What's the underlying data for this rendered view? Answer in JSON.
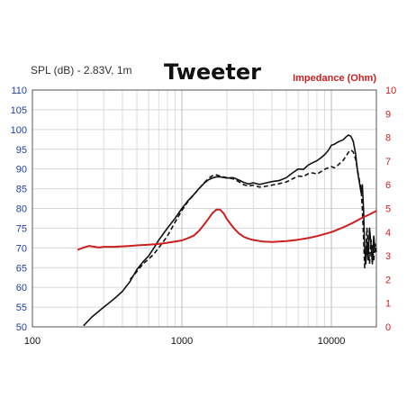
{
  "chart_data": {
    "type": "line",
    "title": "Tweeter",
    "left_axis": {
      "label": "SPL (dB) - 2.83V, 1m",
      "range": [
        50,
        110
      ],
      "ticks": [
        {
          "value": 110,
          "label": "110"
        },
        {
          "value": 105,
          "label": "105"
        },
        {
          "value": 100,
          "label": "100"
        },
        {
          "value": 95,
          "label": "95"
        },
        {
          "value": 90,
          "label": "90"
        },
        {
          "value": 85,
          "label": "85"
        },
        {
          "value": 80,
          "label": "80"
        },
        {
          "value": 75,
          "label": "75"
        },
        {
          "value": 70,
          "label": "70"
        },
        {
          "value": 65,
          "label": "65"
        },
        {
          "value": 60,
          "label": "60"
        },
        {
          "value": 55,
          "label": "55"
        },
        {
          "value": 50,
          "label": "50"
        }
      ],
      "color": "#1f3f9f"
    },
    "right_axis": {
      "label": "Impedance (Ohm)",
      "range": [
        0,
        10
      ],
      "ticks": [
        {
          "value": 10,
          "label": "10"
        },
        {
          "value": 9,
          "label": "9"
        },
        {
          "value": 8,
          "label": "8"
        },
        {
          "value": 7,
          "label": "7"
        },
        {
          "value": 6,
          "label": "6"
        },
        {
          "value": 5,
          "label": "5"
        },
        {
          "value": 4,
          "label": "4"
        },
        {
          "value": 3,
          "label": "3"
        },
        {
          "value": 2,
          "label": "2"
        },
        {
          "value": 1,
          "label": "1"
        },
        {
          "value": 0,
          "label": "0"
        }
      ],
      "color": "#cc1f1f"
    },
    "x_axis": {
      "scale": "log",
      "range": [
        100,
        20000
      ],
      "ticks": [
        {
          "value": 100,
          "label": "100"
        },
        {
          "value": 1000,
          "label": "1000"
        },
        {
          "value": 10000,
          "label": "10000"
        }
      ]
    },
    "grid": true,
    "series": [
      {
        "style": "solid",
        "color": "#111111",
        "axis": "left",
        "points": [
          [
            220,
            50.3
          ],
          [
            250,
            52.5
          ],
          [
            300,
            55.0
          ],
          [
            350,
            57.0
          ],
          [
            400,
            59.0
          ],
          [
            450,
            61.5
          ],
          [
            500,
            64.5
          ],
          [
            550,
            66.5
          ],
          [
            600,
            68.0
          ],
          [
            650,
            70.0
          ],
          [
            700,
            72.0
          ],
          [
            800,
            75.0
          ],
          [
            900,
            77.5
          ],
          [
            1000,
            80.0
          ],
          [
            1100,
            82.0
          ],
          [
            1200,
            83.5
          ],
          [
            1300,
            85.0
          ],
          [
            1400,
            86.3
          ],
          [
            1500,
            87.2
          ],
          [
            1600,
            87.7
          ],
          [
            1700,
            88.0
          ],
          [
            1800,
            88.0
          ],
          [
            2000,
            87.7
          ],
          [
            2200,
            87.8
          ],
          [
            2400,
            87.2
          ],
          [
            2600,
            86.6
          ],
          [
            2800,
            86.2
          ],
          [
            3000,
            86.5
          ],
          [
            3300,
            86.1
          ],
          [
            3600,
            86.4
          ],
          [
            4000,
            86.8
          ],
          [
            4500,
            87.1
          ],
          [
            5000,
            87.8
          ],
          [
            5500,
            89.0
          ],
          [
            6000,
            90.0
          ],
          [
            6500,
            89.9
          ],
          [
            7000,
            91.0
          ],
          [
            7500,
            91.6
          ],
          [
            8000,
            92.1
          ],
          [
            8500,
            92.8
          ],
          [
            9000,
            93.6
          ],
          [
            9500,
            94.6
          ],
          [
            10000,
            96.0
          ],
          [
            10500,
            96.3
          ],
          [
            11000,
            96.8
          ],
          [
            12000,
            97.4
          ],
          [
            12500,
            98.1
          ],
          [
            13000,
            98.6
          ],
          [
            13500,
            98.3
          ],
          [
            14000,
            97.0
          ],
          [
            14500,
            94.0
          ],
          [
            15000,
            89.0
          ],
          [
            15500,
            86.0
          ],
          [
            15800,
            84.0
          ],
          [
            16100,
            86.0
          ],
          [
            16400,
            80.0
          ],
          [
            16700,
            70.0
          ],
          [
            17000,
            66.0
          ],
          [
            17300,
            72.0
          ],
          [
            17600,
            67.0
          ],
          [
            18000,
            75.0
          ],
          [
            18400,
            71.0
          ],
          [
            18800,
            66.0
          ],
          [
            19200,
            73.0
          ],
          [
            19600,
            69.0
          ],
          [
            20000,
            70.0
          ]
        ]
      },
      {
        "style": "dashed",
        "color": "#111111",
        "axis": "left",
        "points": [
          [
            450,
            62.0
          ],
          [
            500,
            64.0
          ],
          [
            550,
            66.0
          ],
          [
            600,
            67.2
          ],
          [
            650,
            68.5
          ],
          [
            700,
            70.0
          ],
          [
            800,
            73.0
          ],
          [
            900,
            76.5
          ],
          [
            1000,
            79.5
          ],
          [
            1100,
            81.8
          ],
          [
            1200,
            83.5
          ],
          [
            1300,
            85.0
          ],
          [
            1400,
            86.4
          ],
          [
            1500,
            87.5
          ],
          [
            1600,
            88.3
          ],
          [
            1700,
            88.5
          ],
          [
            1800,
            88.2
          ],
          [
            2000,
            87.8
          ],
          [
            2200,
            87.5
          ],
          [
            2400,
            86.8
          ],
          [
            2600,
            86.0
          ],
          [
            2800,
            85.7
          ],
          [
            3000,
            85.9
          ],
          [
            3300,
            85.4
          ],
          [
            3600,
            85.6
          ],
          [
            4000,
            85.9
          ],
          [
            4500,
            86.3
          ],
          [
            5000,
            86.7
          ],
          [
            5500,
            87.5
          ],
          [
            6000,
            88.2
          ],
          [
            6500,
            88.1
          ],
          [
            7000,
            88.8
          ],
          [
            7500,
            89.0
          ],
          [
            8000,
            88.7
          ],
          [
            8500,
            89.3
          ],
          [
            9000,
            89.9
          ],
          [
            9500,
            90.3
          ],
          [
            10000,
            90.6
          ],
          [
            10500,
            90.3
          ],
          [
            11000,
            90.9
          ],
          [
            12000,
            92.2
          ],
          [
            12500,
            93.2
          ],
          [
            13000,
            94.2
          ],
          [
            13500,
            94.8
          ],
          [
            14000,
            94.3
          ],
          [
            14500,
            92.6
          ],
          [
            15000,
            89.5
          ],
          [
            15500,
            86.5
          ],
          [
            15800,
            85.0
          ],
          [
            16100,
            80.0
          ],
          [
            16400,
            73.0
          ],
          [
            16700,
            65.0
          ],
          [
            17000,
            68.0
          ],
          [
            17300,
            75.0
          ],
          [
            17600,
            71.0
          ],
          [
            18000,
            66.0
          ],
          [
            18400,
            72.0
          ],
          [
            18800,
            70.0
          ],
          [
            19200,
            67.0
          ],
          [
            19600,
            71.0
          ],
          [
            20000,
            69.0
          ]
        ]
      },
      {
        "style": "solid",
        "color": "#cc1f1f",
        "axis": "right",
        "points": [
          [
            200,
            3.25
          ],
          [
            220,
            3.35
          ],
          [
            240,
            3.42
          ],
          [
            260,
            3.38
          ],
          [
            280,
            3.35
          ],
          [
            300,
            3.38
          ],
          [
            350,
            3.38
          ],
          [
            400,
            3.4
          ],
          [
            450,
            3.42
          ],
          [
            500,
            3.44
          ],
          [
            600,
            3.47
          ],
          [
            700,
            3.5
          ],
          [
            800,
            3.55
          ],
          [
            900,
            3.6
          ],
          [
            1000,
            3.65
          ],
          [
            1100,
            3.75
          ],
          [
            1200,
            3.85
          ],
          [
            1300,
            4.05
          ],
          [
            1400,
            4.3
          ],
          [
            1500,
            4.55
          ],
          [
            1600,
            4.8
          ],
          [
            1700,
            4.95
          ],
          [
            1800,
            4.95
          ],
          [
            1900,
            4.8
          ],
          [
            2000,
            4.55
          ],
          [
            2200,
            4.2
          ],
          [
            2400,
            3.95
          ],
          [
            2600,
            3.8
          ],
          [
            2800,
            3.72
          ],
          [
            3000,
            3.67
          ],
          [
            3500,
            3.6
          ],
          [
            4000,
            3.58
          ],
          [
            5000,
            3.62
          ],
          [
            6000,
            3.68
          ],
          [
            7000,
            3.75
          ],
          [
            8000,
            3.83
          ],
          [
            9000,
            3.92
          ],
          [
            10000,
            4.0
          ],
          [
            12000,
            4.2
          ],
          [
            14000,
            4.4
          ],
          [
            16000,
            4.6
          ],
          [
            18000,
            4.75
          ],
          [
            20000,
            4.9
          ]
        ]
      }
    ]
  }
}
